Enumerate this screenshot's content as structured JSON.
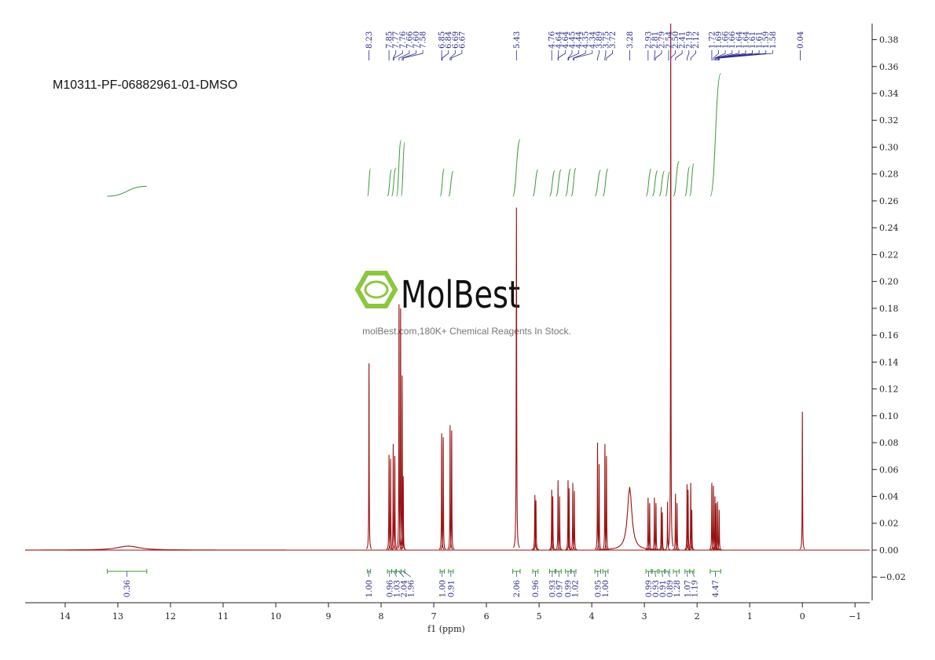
{
  "chart_data": {
    "type": "nmr",
    "title": "M10311-PF-06882961-01-DMSO",
    "x_label": "f1 (ppm)",
    "watermark": {
      "logo": "MolBest",
      "text": "molBest.com,180K+ Chemical Reagents In Stock."
    },
    "xlim": [
      14.76,
      -1.28
    ],
    "xticks": [
      14,
      13,
      12,
      11,
      10,
      9,
      8,
      7,
      6,
      5,
      4,
      3,
      2,
      1,
      0,
      {
        "value": -1,
        "label": "−1"
      }
    ],
    "ylim": [
      -0.0374,
      0.392
    ],
    "yticks": [
      0.38,
      0.36,
      0.34,
      0.32,
      {
        "value": 0.3,
        "label": "0.30"
      },
      0.28,
      0.26,
      0.24,
      0.22,
      {
        "value": 0.2,
        "label": "0.20"
      },
      0.18,
      0.16,
      0.14,
      0.12,
      {
        "value": 0.1,
        "label": "0.10"
      },
      0.08,
      0.06,
      0.04,
      0.02,
      {
        "value": 0,
        "label": "0.00"
      },
      {
        "value": -0.02,
        "label": "−0.02"
      }
    ],
    "color": "#9b1010",
    "integral_color": "#3a9a3a",
    "label_color": "#2a2a8c",
    "peaks": [
      {
        "ppm": 12.8,
        "height": 0.003,
        "width": 0.25
      },
      {
        "ppm": 8.23,
        "height": 0.139,
        "width": 0.004
      },
      {
        "ppm": 7.85,
        "height": 0.071,
        "width": 0.004
      },
      {
        "ppm": 7.82,
        "height": 0.068,
        "width": 0.004
      },
      {
        "ppm": 7.77,
        "height": 0.079,
        "width": 0.004
      },
      {
        "ppm": 7.74,
        "height": 0.07,
        "width": 0.004
      },
      {
        "ppm": 7.66,
        "height": 0.183,
        "width": 0.004
      },
      {
        "ppm": 7.63,
        "height": 0.18,
        "width": 0.004
      },
      {
        "ppm": 7.6,
        "height": 0.13,
        "width": 0.004
      },
      {
        "ppm": 7.58,
        "height": 0.055,
        "width": 0.004
      },
      {
        "ppm": 6.85,
        "height": 0.087,
        "width": 0.004
      },
      {
        "ppm": 6.82,
        "height": 0.084,
        "width": 0.004
      },
      {
        "ppm": 6.69,
        "height": 0.093,
        "width": 0.004
      },
      {
        "ppm": 6.66,
        "height": 0.089,
        "width": 0.004
      },
      {
        "ppm": 5.43,
        "height": 0.255,
        "width": 0.005
      },
      {
        "ppm": 5.08,
        "height": 0.041,
        "width": 0.005
      },
      {
        "ppm": 5.06,
        "height": 0.037,
        "width": 0.005
      },
      {
        "ppm": 4.76,
        "height": 0.045,
        "width": 0.004
      },
      {
        "ppm": 4.74,
        "height": 0.04,
        "width": 0.004
      },
      {
        "ppm": 4.64,
        "height": 0.052,
        "width": 0.004
      },
      {
        "ppm": 4.61,
        "height": 0.04,
        "width": 0.004
      },
      {
        "ppm": 4.45,
        "height": 0.052,
        "width": 0.004
      },
      {
        "ppm": 4.43,
        "height": 0.046,
        "width": 0.004
      },
      {
        "ppm": 4.36,
        "height": 0.05,
        "width": 0.004
      },
      {
        "ppm": 4.33,
        "height": 0.044,
        "width": 0.004
      },
      {
        "ppm": 3.89,
        "height": 0.08,
        "width": 0.004
      },
      {
        "ppm": 3.86,
        "height": 0.064,
        "width": 0.004
      },
      {
        "ppm": 3.75,
        "height": 0.079,
        "width": 0.004
      },
      {
        "ppm": 3.72,
        "height": 0.07,
        "width": 0.004
      },
      {
        "ppm": 3.28,
        "height": 0.047,
        "width": 0.05
      },
      {
        "ppm": 2.93,
        "height": 0.039,
        "width": 0.004
      },
      {
        "ppm": 2.9,
        "height": 0.035,
        "width": 0.004
      },
      {
        "ppm": 2.81,
        "height": 0.039,
        "width": 0.004
      },
      {
        "ppm": 2.78,
        "height": 0.035,
        "width": 0.004
      },
      {
        "ppm": 2.68,
        "height": 0.032,
        "width": 0.004
      },
      {
        "ppm": 2.66,
        "height": 0.028,
        "width": 0.004
      },
      {
        "ppm": 2.56,
        "height": 0.036,
        "width": 0.004
      },
      {
        "ppm": 2.5,
        "height": 0.392,
        "width": 0.004
      },
      {
        "ppm": 2.41,
        "height": 0.042,
        "width": 0.004
      },
      {
        "ppm": 2.38,
        "height": 0.035,
        "width": 0.004
      },
      {
        "ppm": 2.19,
        "height": 0.049,
        "width": 0.004
      },
      {
        "ppm": 2.17,
        "height": 0.045,
        "width": 0.004
      },
      {
        "ppm": 2.12,
        "height": 0.05,
        "width": 0.004
      },
      {
        "ppm": 2.1,
        "height": 0.03,
        "width": 0.004
      },
      {
        "ppm": 1.72,
        "height": 0.05,
        "width": 0.004
      },
      {
        "ppm": 1.69,
        "height": 0.048,
        "width": 0.004
      },
      {
        "ppm": 1.66,
        "height": 0.04,
        "width": 0.004
      },
      {
        "ppm": 1.64,
        "height": 0.035,
        "width": 0.004
      },
      {
        "ppm": 1.61,
        "height": 0.036,
        "width": 0.004
      },
      {
        "ppm": 1.58,
        "height": 0.03,
        "width": 0.004
      },
      {
        "ppm": 0.0,
        "height": 0.103,
        "width": 0.004
      }
    ],
    "peak_labels": [
      "8.23",
      "7.85",
      "7.77",
      "7.76",
      "7.66",
      "7.60",
      "7.58",
      "6.85",
      "6.84",
      "6.69",
      "6.67",
      "5.43",
      "4.76",
      "4.64",
      "4.64",
      "4.45",
      "4.44",
      "4.35",
      "4.34",
      "3.89",
      "3.75",
      "3.72",
      "3.28",
      "2.93",
      "2.81",
      "2.79",
      "2.54",
      "2.50",
      "2.41",
      "2.19",
      "2.12",
      "1.72",
      "1.69",
      "1.66",
      "1.66",
      "1.64",
      "1.64",
      "1.61",
      "1.61",
      "1.59",
      "1.58",
      "0.04"
    ],
    "integrals": [
      {
        "from": 13.2,
        "to": 12.45,
        "value": 0.36,
        "label": "0.36"
      },
      {
        "from": 8.26,
        "to": 8.2,
        "value": 1,
        "label": "1.00"
      },
      {
        "from": 7.88,
        "to": 7.8,
        "value": 0.96,
        "label": "0.96"
      },
      {
        "from": 7.8,
        "to": 7.72,
        "value": 1.03,
        "label": "1.03"
      },
      {
        "from": 7.71,
        "to": 7.62,
        "value": 2.04,
        "label": "2.04"
      },
      {
        "from": 7.62,
        "to": 7.55,
        "value": 1.96,
        "label": "1.96"
      },
      {
        "from": 6.88,
        "to": 6.8,
        "value": 1,
        "label": "1.00"
      },
      {
        "from": 6.72,
        "to": 6.63,
        "value": 0.91,
        "label": "0.91"
      },
      {
        "from": 5.5,
        "to": 5.36,
        "value": 2.06,
        "label": "2.06"
      },
      {
        "from": 5.12,
        "to": 5.02,
        "value": 0.96,
        "label": "0.96"
      },
      {
        "from": 4.8,
        "to": 4.7,
        "value": 0.93,
        "label": "0.93"
      },
      {
        "from": 4.68,
        "to": 4.58,
        "value": 0.97,
        "label": "0.97"
      },
      {
        "from": 4.5,
        "to": 4.4,
        "value": 0.99,
        "label": "0.99"
      },
      {
        "from": 4.39,
        "to": 4.3,
        "value": 1.02,
        "label": "1.02"
      },
      {
        "from": 3.94,
        "to": 3.83,
        "value": 0.95,
        "label": "0.95"
      },
      {
        "from": 3.79,
        "to": 3.69,
        "value": 1,
        "label": "1.00"
      },
      {
        "from": 2.97,
        "to": 2.87,
        "value": 0.99,
        "label": "0.99"
      },
      {
        "from": 2.85,
        "to": 2.75,
        "value": 0.93,
        "label": "0.93"
      },
      {
        "from": 2.72,
        "to": 2.62,
        "value": 0.91,
        "label": "0.91"
      },
      {
        "from": 2.6,
        "to": 2.52,
        "value": 0.89,
        "label": "0.89"
      },
      {
        "from": 2.45,
        "to": 2.34,
        "value": 1.28,
        "label": "1.28"
      },
      {
        "from": 2.23,
        "to": 2.14,
        "value": 1.07,
        "label": "1.07"
      },
      {
        "from": 2.14,
        "to": 2.06,
        "value": 1.19,
        "label": "1.19"
      },
      {
        "from": 1.75,
        "to": 1.55,
        "value": 4.47,
        "label": "4.47"
      }
    ]
  }
}
